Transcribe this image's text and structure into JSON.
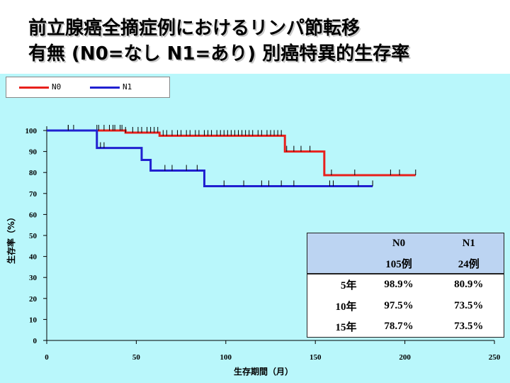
{
  "slide": {
    "title_line1": "前立腺癌全摘症例におけるリンパ節転移",
    "title_line2": "有無 (N0=なし N1=あり) 別癌特異的生存率"
  },
  "colors": {
    "n0": "#e8201c",
    "n1": "#2020d0",
    "panel": "#b9f7fb",
    "table_header": "#bcd4f2"
  },
  "chart_data": {
    "type": "line",
    "step": true,
    "xlabel": "生存期間（月）",
    "ylabel": "生存率（%）",
    "xlim": [
      0,
      250
    ],
    "ylim": [
      0,
      100
    ],
    "xticks": [
      0,
      50,
      100,
      150,
      200,
      250
    ],
    "yticks": [
      0,
      10,
      20,
      30,
      40,
      50,
      60,
      70,
      80,
      90,
      100
    ],
    "legend": "top-left",
    "series": [
      {
        "name": "N0",
        "color": "#e8201c",
        "steps": [
          [
            0,
            100
          ],
          [
            44,
            99
          ],
          [
            63,
            97.5
          ],
          [
            133,
            90
          ],
          [
            155,
            78.7
          ],
          [
            206,
            78.7
          ]
        ],
        "censor_marks": [
          12,
          15,
          28,
          29,
          32,
          35,
          37,
          38,
          41,
          42,
          44,
          48,
          51,
          53,
          56,
          58,
          60,
          62,
          65,
          67,
          70,
          73,
          75,
          78,
          80,
          83,
          85,
          88,
          90,
          92,
          95,
          97,
          99,
          101,
          103,
          105,
          107,
          109,
          111,
          113,
          115,
          118,
          120,
          123,
          125,
          127,
          129,
          131,
          134,
          138,
          142,
          147,
          159,
          172,
          192,
          197,
          206
        ]
      },
      {
        "name": "N1",
        "color": "#2020d0",
        "steps": [
          [
            0,
            100
          ],
          [
            28,
            91.7
          ],
          [
            53,
            86
          ],
          [
            58,
            80.9
          ],
          [
            88,
            73.5
          ],
          [
            182,
            73.5
          ]
        ],
        "censor_marks": [
          12,
          30,
          32,
          66,
          70,
          78,
          84,
          99,
          110,
          120,
          124,
          131,
          138,
          158,
          160,
          174,
          182
        ]
      }
    ]
  },
  "table": {
    "columns": [
      "",
      "N0",
      "N1"
    ],
    "counts": [
      "",
      "105例",
      "24例"
    ],
    "rows": [
      [
        "5年",
        "98.9%",
        "80.9%"
      ],
      [
        "10年",
        "97.5%",
        "73.5%"
      ],
      [
        "15年",
        "78.7%",
        "73.5%"
      ]
    ]
  }
}
